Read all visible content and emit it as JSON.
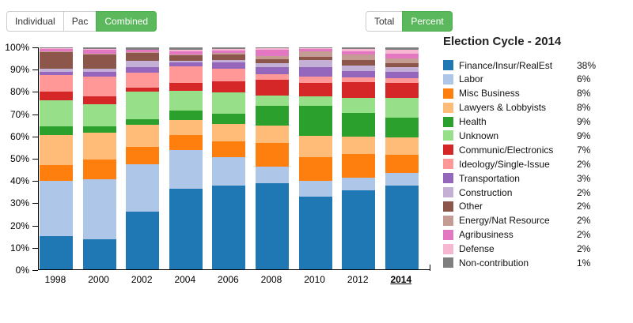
{
  "toolbar": {
    "contribution_group": [
      {
        "label": "Individual",
        "active": false
      },
      {
        "label": "Pac",
        "active": false
      },
      {
        "label": "Combined",
        "active": true
      }
    ],
    "mode_group": [
      {
        "label": "Total",
        "active": false
      },
      {
        "label": "Percent",
        "active": true
      }
    ],
    "active_color": "#5cb85c",
    "active_border_color": "#4cae4c"
  },
  "legend": {
    "title": "Election Cycle - 2014"
  },
  "chart_data": {
    "type": "bar",
    "subtype": "stacked-percent",
    "categories": [
      "1998",
      "2000",
      "2002",
      "2004",
      "2006",
      "2008",
      "2010",
      "2012",
      "2014"
    ],
    "selected_category": "2014",
    "ylim": [
      0,
      100
    ],
    "y_ticks": [
      "0%",
      "10%",
      "20%",
      "30%",
      "40%",
      "50%",
      "60%",
      "70%",
      "80%",
      "90%",
      "100%"
    ],
    "grid": false,
    "legend_position": "right",
    "series": [
      {
        "name": "Finance/Insur/RealEst",
        "color": "#1f77b4",
        "legend_pct": "38%",
        "values": [
          15.0,
          13.5,
          26.0,
          36.3,
          37.9,
          38.9,
          32.7,
          35.5,
          38
        ]
      },
      {
        "name": "Labor",
        "color": "#aec7e8",
        "legend_pct": "6%",
        "values": [
          25.0,
          27.0,
          21.5,
          17.3,
          12.7,
          7.5,
          7.0,
          6.0,
          6
        ]
      },
      {
        "name": "Misc Business",
        "color": "#ff7f0e",
        "legend_pct": "8%",
        "values": [
          7.0,
          9.0,
          8.0,
          7.0,
          7.0,
          10.4,
          11.0,
          10.5,
          8
        ]
      },
      {
        "name": "Lawyers & Lobbyists",
        "color": "#ffbb78",
        "legend_pct": "8%",
        "values": [
          13.5,
          12.0,
          10.0,
          6.5,
          8.0,
          8.0,
          9.3,
          8.0,
          8
        ]
      },
      {
        "name": "Health",
        "color": "#2ca02c",
        "legend_pct": "9%",
        "values": [
          4.0,
          3.0,
          2.6,
          4.4,
          4.5,
          9.0,
          13.7,
          10.7,
          9
        ]
      },
      {
        "name": "Unknown",
        "color": "#98df8a",
        "legend_pct": "9%",
        "values": [
          11.5,
          10.0,
          12.7,
          9.0,
          9.5,
          4.5,
          4.2,
          6.8,
          9
        ]
      },
      {
        "name": "Communic/Electronics",
        "color": "#d62728",
        "legend_pct": "7%",
        "values": [
          4.0,
          3.5,
          1.8,
          3.6,
          5.3,
          7.0,
          6.2,
          6.8,
          7
        ]
      },
      {
        "name": "Ideology/Single-Issue",
        "color": "#ff9896",
        "legend_pct": "2%",
        "values": [
          7.5,
          9.0,
          6.5,
          7.5,
          5.4,
          2.6,
          2.7,
          2.4,
          2
        ]
      },
      {
        "name": "Transportation",
        "color": "#9467bd",
        "legend_pct": "3%",
        "values": [
          1.5,
          2.0,
          2.6,
          1.5,
          3.0,
          3.3,
          4.4,
          2.7,
          3
        ]
      },
      {
        "name": "Construction",
        "color": "#c5b0d5",
        "legend_pct": "2%",
        "values": [
          1.5,
          1.5,
          3.1,
          0.8,
          1.0,
          1.8,
          3.3,
          2.4,
          2
        ]
      },
      {
        "name": "Other",
        "color": "#8c564b",
        "legend_pct": "2%",
        "values": [
          7.5,
          6.3,
          3.6,
          2.7,
          2.6,
          1.8,
          1.2,
          2.7,
          2
        ]
      },
      {
        "name": "Energy/Nat Resource",
        "color": "#c49c94",
        "legend_pct": "2%",
        "values": [
          0.3,
          0.3,
          0.3,
          0.4,
          0.7,
          1.5,
          2.6,
          2.4,
          2
        ]
      },
      {
        "name": "Agribusiness",
        "color": "#e377c2",
        "legend_pct": "2%",
        "values": [
          1.0,
          1.8,
          0.8,
          1.2,
          1.2,
          2.6,
          1.1,
          1.4,
          2
        ]
      },
      {
        "name": "Defense",
        "color": "#f7b6d2",
        "legend_pct": "2%",
        "values": [
          0.5,
          0.6,
          0.3,
          0.8,
          0.7,
          0.8,
          0.4,
          1.2,
          2
        ]
      },
      {
        "name": "Non-contribution",
        "color": "#7f7f7f",
        "legend_pct": "1%",
        "values": [
          0.2,
          0.5,
          0.9,
          1.0,
          0.5,
          0.3,
          0.2,
          0.6,
          1
        ]
      }
    ]
  }
}
